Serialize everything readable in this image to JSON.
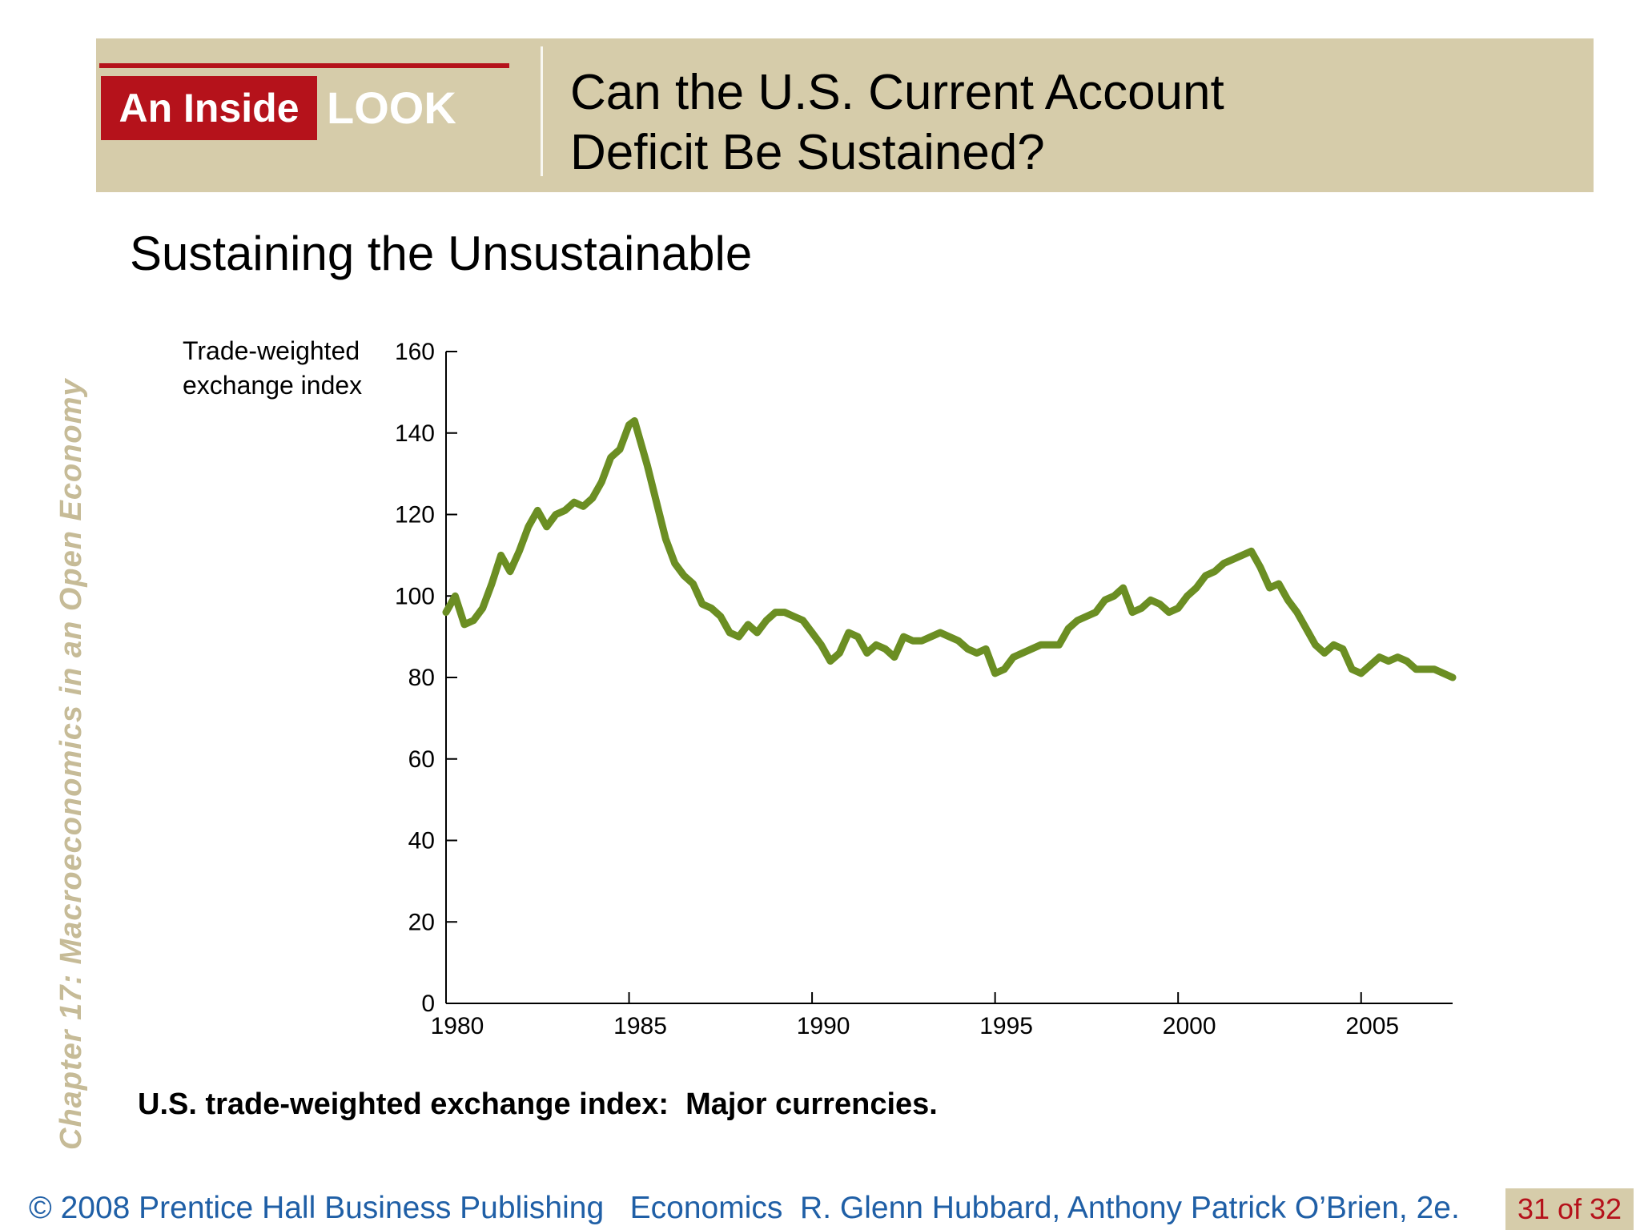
{
  "header": {
    "badge_text": "An Inside",
    "badge_look": "LOOK",
    "title_line1": "Can the U.S. Current Account",
    "title_line2": "Deficit Be Sustained?"
  },
  "subtitle": "Sustaining the Unsustainable",
  "side_label": "Chapter 17:  Macroeconomics in an Open Economy",
  "caption": "U.S. trade-weighted exchange index:  Major currencies.",
  "footer": {
    "copyright": "© 2008 Prentice Hall Business Publishing   Economics  R. Glenn Hubbard, Anthony Patrick O’Brien, 2e.",
    "page": "31 of 32"
  },
  "colors": {
    "header_band": "#d6ccaa",
    "accent_red": "#b5121b",
    "line": "#6b8e23",
    "footer_text": "#1f5fa6",
    "side_label": "#c6bb97"
  },
  "chart_data": {
    "type": "line",
    "ylabel_lines": [
      "Trade-weighted",
      "exchange index"
    ],
    "xlabel": "",
    "xlim": [
      1980,
      2007.5
    ],
    "ylim": [
      0,
      160
    ],
    "x_ticks": [
      1980,
      1985,
      1990,
      1995,
      2000,
      2005
    ],
    "y_ticks": [
      0,
      20,
      40,
      60,
      80,
      100,
      120,
      140,
      160
    ],
    "grid": false,
    "series": [
      {
        "x": [
          1980.0,
          1980.25,
          1980.5,
          1980.75,
          1981.0,
          1981.25,
          1981.5,
          1981.75,
          1982.0,
          1982.25,
          1982.5,
          1982.75,
          1983.0,
          1983.25,
          1983.5,
          1983.75,
          1984.0,
          1984.25,
          1984.5,
          1984.75,
          1985.0,
          1985.15,
          1985.5,
          1985.75,
          1986.0,
          1986.25,
          1986.5,
          1986.75,
          1987.0,
          1987.25,
          1987.5,
          1987.75,
          1988.0,
          1988.25,
          1988.5,
          1988.75,
          1989.0,
          1989.25,
          1989.5,
          1989.75,
          1990.0,
          1990.25,
          1990.5,
          1990.75,
          1991.0,
          1991.25,
          1991.5,
          1991.75,
          1992.0,
          1992.25,
          1992.5,
          1992.75,
          1993.0,
          1993.25,
          1993.5,
          1993.75,
          1994.0,
          1994.25,
          1994.5,
          1994.75,
          1995.0,
          1995.25,
          1995.5,
          1995.75,
          1996.0,
          1996.25,
          1996.5,
          1996.75,
          1997.0,
          1997.25,
          1997.5,
          1997.75,
          1998.0,
          1998.25,
          1998.5,
          1998.75,
          1999.0,
          1999.25,
          1999.5,
          1999.75,
          2000.0,
          2000.25,
          2000.5,
          2000.75,
          2001.0,
          2001.25,
          2001.5,
          2001.75,
          2002.0,
          2002.25,
          2002.5,
          2002.75,
          2003.0,
          2003.25,
          2003.5,
          2003.75,
          2004.0,
          2004.25,
          2004.5,
          2004.75,
          2005.0,
          2005.25,
          2005.5,
          2005.75,
          2006.0,
          2006.25,
          2006.5,
          2006.75,
          2007.0,
          2007.25,
          2007.5
        ],
        "values": [
          96,
          100,
          93,
          94,
          97,
          103,
          110,
          106,
          111,
          117,
          121,
          117,
          120,
          121,
          123,
          122,
          124,
          128,
          134,
          136,
          142,
          143,
          132,
          123,
          114,
          108,
          105,
          103,
          98,
          97,
          95,
          91,
          90,
          93,
          91,
          94,
          96,
          96,
          95,
          94,
          91,
          88,
          84,
          86,
          91,
          90,
          86,
          88,
          87,
          85,
          90,
          89,
          89,
          90,
          91,
          90,
          89,
          87,
          86,
          87,
          81,
          82,
          85,
          86,
          87,
          88,
          88,
          88,
          92,
          94,
          95,
          96,
          99,
          100,
          102,
          96,
          97,
          99,
          98,
          96,
          97,
          100,
          102,
          105,
          106,
          108,
          109,
          110,
          111,
          107,
          102,
          103,
          99,
          96,
          92,
          88,
          86,
          88,
          87,
          82,
          81,
          83,
          85,
          84,
          85,
          84,
          82,
          82,
          82,
          81,
          80
        ]
      }
    ]
  }
}
